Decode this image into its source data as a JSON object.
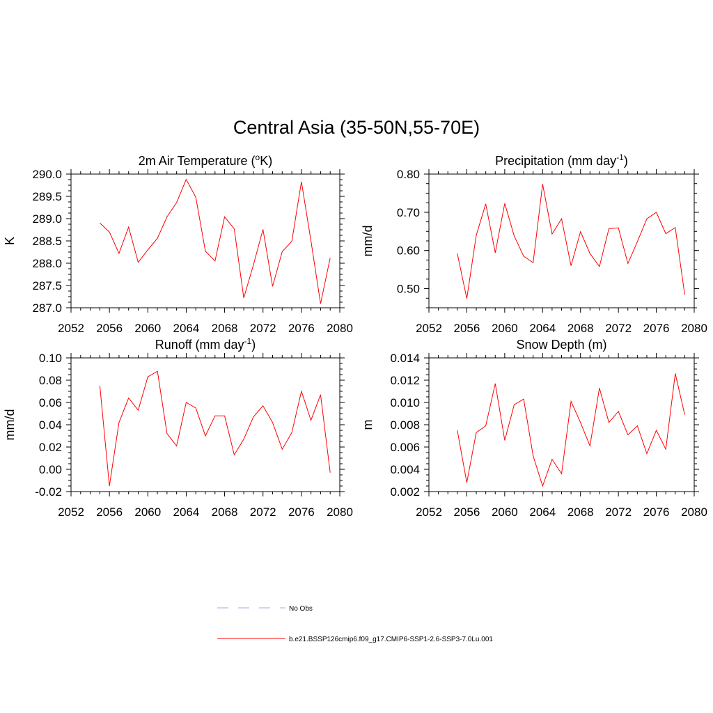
{
  "title": "Central Asia (35-50N,55-70E)",
  "chart_data": [
    {
      "type": "line",
      "title": "2m Air Temperature (°K)",
      "title_parts": {
        "pre": "2m Air Temperature (",
        "sup": "o",
        "post": "K)"
      },
      "ylabel": "K",
      "xlim": [
        2052,
        2080
      ],
      "ylim": [
        287.0,
        290.0
      ],
      "x_ticks": [
        2052,
        2056,
        2060,
        2064,
        2068,
        2072,
        2076,
        2080
      ],
      "y_ticks": [
        "287.0",
        "287.5",
        "288.0",
        "288.5",
        "289.0",
        "289.5",
        "290.0"
      ],
      "x": [
        2055,
        2056,
        2057,
        2058,
        2059,
        2060,
        2061,
        2062,
        2063,
        2064,
        2065,
        2066,
        2067,
        2068,
        2069,
        2070,
        2071,
        2072,
        2073,
        2074,
        2075,
        2076,
        2077,
        2078,
        2079
      ],
      "series": [
        {
          "color": "#ff0000",
          "values": [
            288.9,
            288.7,
            288.22,
            288.81,
            288.02,
            288.3,
            288.56,
            289.04,
            289.36,
            289.88,
            289.48,
            288.27,
            288.05,
            289.04,
            288.77,
            287.22,
            287.96,
            288.76,
            287.48,
            288.26,
            288.49,
            289.83,
            288.5,
            287.09,
            288.12
          ]
        }
      ]
    },
    {
      "type": "line",
      "title": "Precipitation (mm day-1)",
      "title_parts": {
        "pre": "Precipitation (mm day",
        "sup": "-1",
        "post": ")"
      },
      "ylabel": "mm/d",
      "xlim": [
        2052,
        2080
      ],
      "ylim": [
        0.45,
        0.8
      ],
      "x_ticks": [
        2052,
        2056,
        2060,
        2064,
        2068,
        2072,
        2076,
        2080
      ],
      "y_ticks": [
        "0.50",
        "0.60",
        "0.70",
        "0.80"
      ],
      "x": [
        2055,
        2056,
        2057,
        2058,
        2059,
        2060,
        2061,
        2062,
        2063,
        2064,
        2065,
        2066,
        2067,
        2068,
        2069,
        2070,
        2071,
        2072,
        2073,
        2074,
        2075,
        2076,
        2077,
        2078,
        2079
      ],
      "series": [
        {
          "color": "#ff0000",
          "values": [
            0.592,
            0.474,
            0.64,
            0.722,
            0.594,
            0.723,
            0.638,
            0.585,
            0.568,
            0.774,
            0.643,
            0.683,
            0.56,
            0.649,
            0.592,
            0.558,
            0.657,
            0.659,
            0.566,
            0.623,
            0.683,
            0.7,
            0.644,
            0.66,
            0.484
          ]
        }
      ]
    },
    {
      "type": "line",
      "title": "Runoff (mm day-1)",
      "title_parts": {
        "pre": "Runoff (mm day",
        "sup": "-1",
        "post": ")"
      },
      "ylabel": "mm/d",
      "xlim": [
        2052,
        2080
      ],
      "ylim": [
        -0.02,
        0.1
      ],
      "x_ticks": [
        2052,
        2056,
        2060,
        2064,
        2068,
        2072,
        2076,
        2080
      ],
      "y_ticks": [
        "-0.02",
        "0.00",
        "0.02",
        "0.04",
        "0.06",
        "0.08",
        "0.10"
      ],
      "x": [
        2055,
        2056,
        2057,
        2058,
        2059,
        2060,
        2061,
        2062,
        2063,
        2064,
        2065,
        2066,
        2067,
        2068,
        2069,
        2070,
        2071,
        2072,
        2073,
        2074,
        2075,
        2076,
        2077,
        2078,
        2079
      ],
      "series": [
        {
          "color": "#ff0000",
          "values": [
            0.075,
            -0.015,
            0.042,
            0.064,
            0.053,
            0.083,
            0.088,
            0.032,
            0.021,
            0.06,
            0.055,
            0.03,
            0.048,
            0.048,
            0.013,
            0.027,
            0.047,
            0.057,
            0.042,
            0.018,
            0.033,
            0.07,
            0.044,
            0.067,
            -0.003
          ]
        }
      ]
    },
    {
      "type": "line",
      "title": "Snow Depth (m)",
      "title_parts": {
        "pre": "Snow Depth (m)",
        "sup": "",
        "post": ""
      },
      "ylabel": "m",
      "xlim": [
        2052,
        2080
      ],
      "ylim": [
        0.002,
        0.014
      ],
      "x_ticks": [
        2052,
        2056,
        2060,
        2064,
        2068,
        2072,
        2076,
        2080
      ],
      "y_ticks": [
        "0.002",
        "0.004",
        "0.006",
        "0.008",
        "0.010",
        "0.012",
        "0.014"
      ],
      "x": [
        2055,
        2056,
        2057,
        2058,
        2059,
        2060,
        2061,
        2062,
        2063,
        2064,
        2065,
        2066,
        2067,
        2068,
        2069,
        2070,
        2071,
        2072,
        2073,
        2074,
        2075,
        2076,
        2077,
        2078,
        2079
      ],
      "series": [
        {
          "color": "#ff0000",
          "values": [
            0.0075,
            0.0028,
            0.0073,
            0.0079,
            0.0117,
            0.0066,
            0.0098,
            0.0103,
            0.0052,
            0.0025,
            0.0049,
            0.0036,
            0.0101,
            0.0082,
            0.0061,
            0.0113,
            0.0082,
            0.0092,
            0.0071,
            0.0079,
            0.0054,
            0.0075,
            0.0058,
            0.0126,
            0.0089
          ]
        }
      ]
    }
  ],
  "legend": [
    {
      "label": "No Obs",
      "color": "#a7a7e6",
      "style": "dashed"
    },
    {
      "label": "b.e21.BSSP126cmip6.f09_g17.CMIP6-SSP1-2.6-SSP3-7.0Lu.001",
      "color": "#ff0000",
      "style": "solid"
    }
  ]
}
